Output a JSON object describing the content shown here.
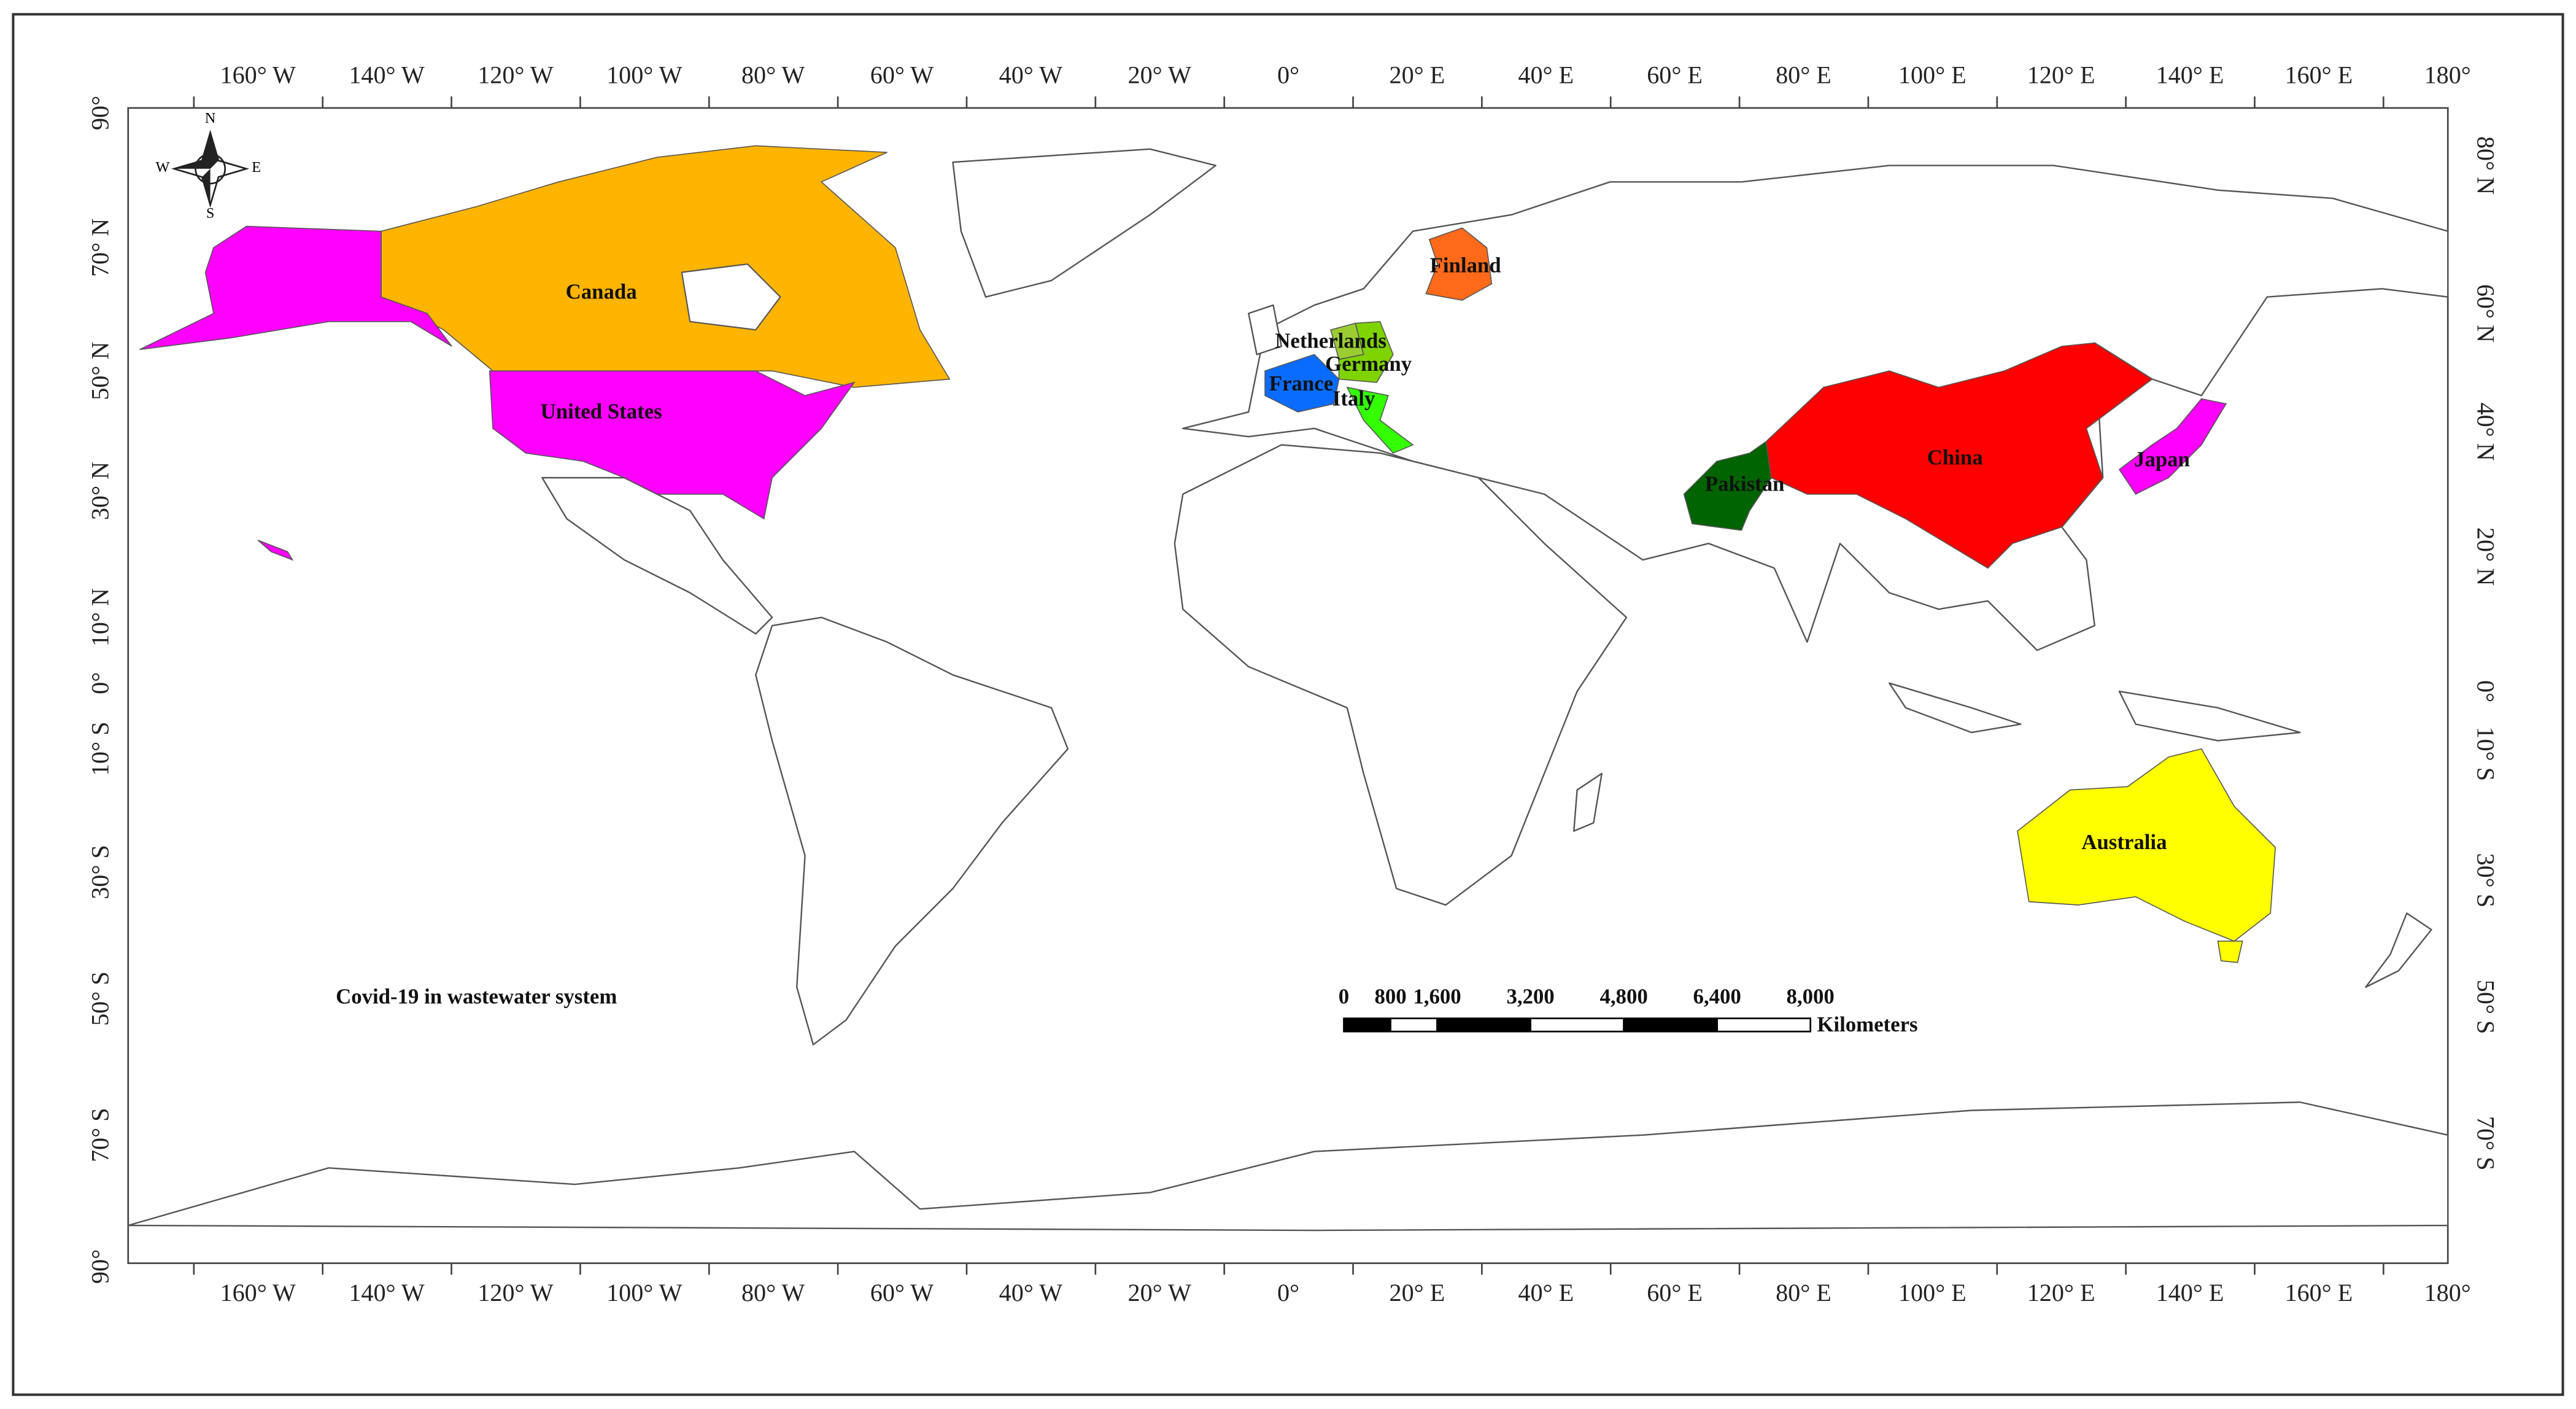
{
  "title": "Covid-19 in wastewater system",
  "compass": {
    "north": "N",
    "south": "S",
    "west": "W",
    "east": "E"
  },
  "longitude_labels": [
    "160° W",
    "140° W",
    "120° W",
    "100° W",
    "80° W",
    "60° W",
    "40° W",
    "20° W",
    "0°",
    "20° E",
    "40° E",
    "60° E",
    "80° E",
    "100° E",
    "120° E",
    "140° E",
    "160° E",
    "180°"
  ],
  "latitude_labels_left": [
    "90°",
    "70° N",
    "50° N",
    "30° N",
    "10° N",
    "0°",
    "10° S",
    "30° S",
    "50° S",
    "70° S",
    "90°"
  ],
  "latitude_labels_right": [
    "80° N",
    "60° N",
    "40° N",
    "20° N",
    "0°",
    "10° S",
    "30° S",
    "50° S",
    "70° S"
  ],
  "countries": [
    {
      "name": "Canada",
      "color": "#FFB400"
    },
    {
      "name": "United States",
      "color": "#FF00FF"
    },
    {
      "name": "Finland",
      "color": "#FF6A1A"
    },
    {
      "name": "Netherlands",
      "color": "#9ACD32"
    },
    {
      "name": "Germany",
      "color": "#7FD400"
    },
    {
      "name": "France",
      "color": "#0A6CFF"
    },
    {
      "name": "Italy",
      "color": "#33FF00"
    },
    {
      "name": "Pakistan",
      "color": "#006400"
    },
    {
      "name": "China",
      "color": "#FF0000"
    },
    {
      "name": "Japan",
      "color": "#FF00FF"
    },
    {
      "name": "Australia",
      "color": "#FFFF00"
    }
  ],
  "scale_bar": {
    "ticks": [
      0,
      800,
      {
        "value": 1600,
        "label": "1,600"
      },
      {
        "value": 3200,
        "label": "3,200"
      },
      {
        "value": 4800,
        "label": "4,800"
      },
      {
        "value": 6400,
        "label": "6,400"
      },
      {
        "value": 8000,
        "label": "8,000"
      }
    ],
    "unit": "Kilometers"
  }
}
